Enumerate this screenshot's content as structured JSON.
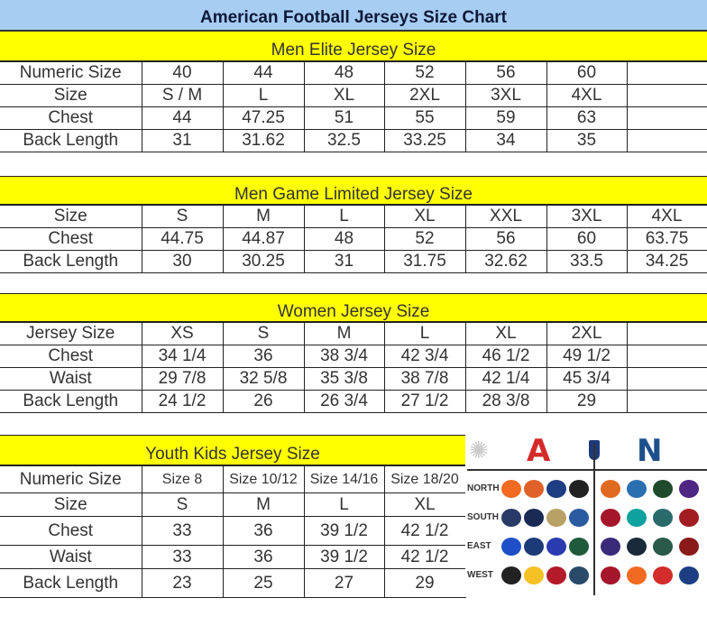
{
  "title": "American Football Jerseys Size Chart",
  "elite": {
    "heading": "Men Elite Jersey Size",
    "rows": [
      [
        "Numeric Size",
        "40",
        "44",
        "48",
        "52",
        "56",
        "60",
        ""
      ],
      [
        "Size",
        "S / M",
        "L",
        "XL",
        "2XL",
        "3XL",
        "4XL",
        ""
      ],
      [
        "Chest",
        "44",
        "47.25",
        "51",
        "55",
        "59",
        "63",
        ""
      ],
      [
        "Back Length",
        "31",
        "31.62",
        "32.5",
        "33.25",
        "34",
        "35",
        ""
      ]
    ]
  },
  "game": {
    "heading": "Men Game Limited Jersey Size",
    "rows": [
      [
        "Size",
        "S",
        "M",
        "L",
        "XL",
        "XXL",
        "3XL",
        "4XL"
      ],
      [
        "Chest",
        "44.75",
        "44.87",
        "48",
        "52",
        "56",
        "60",
        "63.75"
      ],
      [
        "Back Length",
        "30",
        "30.25",
        "31",
        "31.75",
        "32.62",
        "33.5",
        "34.25"
      ]
    ]
  },
  "women": {
    "heading": "Women Jersey Size",
    "rows": [
      [
        "Jersey Size",
        "XS",
        "S",
        "M",
        "L",
        "XL",
        "2XL",
        ""
      ],
      [
        "Chest",
        "34 1/4",
        "36",
        "38 3/4",
        "42 3/4",
        "46 1/2",
        "49 1/2",
        ""
      ],
      [
        "Waist",
        "29 7/8",
        "32 5/8",
        "35 3/8",
        "38 7/8",
        "42 1/4",
        "45 3/4",
        ""
      ],
      [
        "Back Length",
        "24 1/2",
        "26",
        "26 3/4",
        "27 1/2",
        "28 3/8",
        "29",
        ""
      ]
    ]
  },
  "youth": {
    "heading": "Youth Kids Jersey Size",
    "rows": [
      [
        "Numeric Size",
        "Size 8",
        "Size 10/12",
        "Size 14/16",
        "Size 18/20"
      ],
      [
        "Size",
        "S",
        "M",
        "L",
        "XL"
      ],
      [
        "Chest",
        "33",
        "36",
        "39 1/2",
        "42 1/2"
      ],
      [
        "Waist",
        "33",
        "36",
        "39 1/2",
        "42 1/2"
      ],
      [
        "Back Length",
        "23",
        "25",
        "27",
        "29"
      ]
    ]
  },
  "logos": {
    "divisions": [
      "NORTH",
      "SOUTH",
      "EAST",
      "WEST"
    ],
    "afc_color": "#d42b2b",
    "nfc_color": "#1d4f8c",
    "teams": [
      [
        "#f26a21",
        "#e0622a",
        "#1e3e84",
        "#222222",
        "#e06a20",
        "#2a6fb0",
        "#1f4a2c",
        "#4f2683"
      ],
      [
        "#2a3a68",
        "#1a2a55",
        "#b8a165",
        "#2a5aa0",
        "#a5162b",
        "#0fa0a0",
        "#2a6a6a",
        "#a11d21"
      ],
      [
        "#1f4fc8",
        "#1d3a78",
        "#2a3ab0",
        "#1f5a3a",
        "#3a2a78",
        "#1a2a3a",
        "#2a5a4a",
        "#8a1a1a"
      ],
      [
        "#222222",
        "#f5c023",
        "#b31a2a",
        "#2a4a6a",
        "#a5162b",
        "#f26a21",
        "#d42b2b",
        "#1e3e84"
      ]
    ]
  }
}
